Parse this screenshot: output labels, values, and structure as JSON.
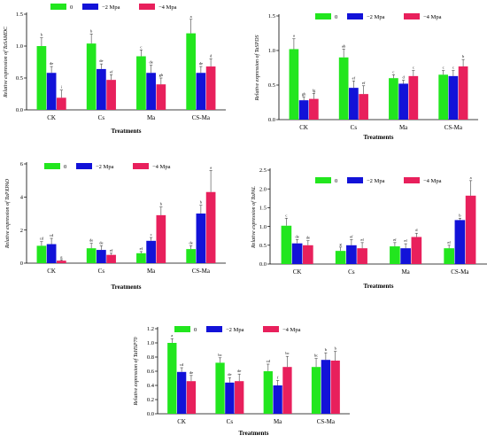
{
  "colors": {
    "s0": "#22e61e",
    "s2": "#1212d8",
    "s4": "#e8205c"
  },
  "chart_data": [
    {
      "type": "bar",
      "ylabel": "Relative expression of TaSAMDC",
      "xlabel": "Treatments",
      "categories": [
        "CK",
        "Cs",
        "Ma",
        "CS-Ma"
      ],
      "ylim": [
        0,
        1.5
      ],
      "yticks": [
        "0.0",
        "0.5",
        "1.0",
        "1.5"
      ],
      "series": [
        {
          "name": "0",
          "values": [
            1.0,
            1.04,
            0.84,
            1.2
          ],
          "err": [
            0.13,
            0.15,
            0.1,
            0.22
          ],
          "letters": [
            "b",
            "b",
            "c",
            "a"
          ]
        },
        {
          "name": "−2 Mpa",
          "values": [
            0.58,
            0.64,
            0.58,
            0.58
          ],
          "err": [
            0.1,
            0.08,
            0.12,
            0.1
          ],
          "letters": [
            "de",
            "de",
            "de",
            "de"
          ]
        },
        {
          "name": "−4 Mpa",
          "values": [
            0.19,
            0.47,
            0.4,
            0.68
          ],
          "err": [
            0.12,
            0.08,
            0.1,
            0.12
          ],
          "letters": [
            "i",
            "ef",
            "gh",
            "d"
          ]
        }
      ]
    },
    {
      "type": "bar",
      "ylabel": "Relative expression of TaSPDS",
      "xlabel": "Treatments",
      "categories": [
        "CK",
        "Cs",
        "Ma",
        "CS-Ma"
      ],
      "ylim": [
        0,
        1.5
      ],
      "yticks": [
        "0.0",
        "0.5",
        "1.0",
        "1.5"
      ],
      "series": [
        {
          "name": "0",
          "values": [
            1.02,
            0.9,
            0.6,
            0.65
          ],
          "err": [
            0.15,
            0.12,
            0.05,
            0.06
          ],
          "letters": [
            "a",
            "ab",
            "c",
            "c"
          ]
        },
        {
          "name": "−2 Mpa",
          "values": [
            0.28,
            0.46,
            0.52,
            0.63
          ],
          "err": [
            0.05,
            0.1,
            0.05,
            0.08
          ],
          "letters": [
            "gh",
            "ef",
            "d",
            "c"
          ]
        },
        {
          "name": "−4 Mpa",
          "values": [
            0.3,
            0.37,
            0.63,
            0.77
          ],
          "err": [
            0.08,
            0.12,
            0.08,
            0.1
          ],
          "letters": [
            "fg",
            "ef",
            "c",
            "b"
          ]
        }
      ]
    },
    {
      "type": "bar",
      "ylabel": "Relative expression of TaPXPAO",
      "xlabel": "Treatments",
      "categories": [
        "CK",
        "Cs",
        "Ma",
        "CS-Ma"
      ],
      "ylim": [
        0,
        6
      ],
      "yticks": [
        "0",
        "2",
        "4",
        "6"
      ],
      "series": [
        {
          "name": "0",
          "values": [
            1.05,
            0.9,
            0.6,
            0.85
          ],
          "err": [
            0.25,
            0.3,
            0.1,
            0.2
          ],
          "letters": [
            "cd",
            "de",
            "ef",
            "de"
          ]
        },
        {
          "name": "−2 Mpa",
          "values": [
            1.15,
            0.8,
            1.35,
            3.0
          ],
          "err": [
            0.35,
            0.25,
            0.2,
            0.5
          ],
          "letters": [
            "cd",
            "de",
            "c",
            "b"
          ]
        },
        {
          "name": "−4 Mpa",
          "values": [
            0.15,
            0.5,
            2.9,
            4.3
          ],
          "err": [
            0.05,
            0.1,
            0.5,
            1.3
          ],
          "letters": [
            "g",
            "ef",
            "b",
            "a"
          ]
        }
      ]
    },
    {
      "type": "bar",
      "ylabel": "Relative expression of TaPAL",
      "xlabel": "Treatments",
      "categories": [
        "CK",
        "Cs",
        "Ma",
        "CS-Ma"
      ],
      "ylim": [
        0,
        2.5
      ],
      "yticks": [
        "0.0",
        "0.5",
        "1.0",
        "1.5",
        "2.0",
        "2.5"
      ],
      "series": [
        {
          "name": "0",
          "values": [
            1.02,
            0.35,
            0.47,
            0.42
          ],
          "err": [
            0.2,
            0.1,
            0.1,
            0.08
          ],
          "letters": [
            "c",
            "g",
            "ef",
            "ef"
          ]
        },
        {
          "name": "−2 Mpa",
          "values": [
            0.55,
            0.5,
            0.42,
            1.17
          ],
          "err": [
            0.1,
            0.15,
            0.12,
            0.05
          ],
          "letters": [
            "de",
            "ef",
            "ef",
            "b"
          ]
        },
        {
          "name": "−4 Mpa",
          "values": [
            0.5,
            0.42,
            0.72,
            1.82
          ],
          "err": [
            0.12,
            0.15,
            0.1,
            0.4
          ],
          "letters": [
            "de",
            "ef",
            "d",
            "a"
          ]
        }
      ]
    },
    {
      "type": "bar",
      "ylabel": "Relative expression of TaHSP70",
      "xlabel": "Treatments",
      "categories": [
        "CK",
        "Cs",
        "Ma",
        "CS-Ma"
      ],
      "ylim": [
        0,
        1.2
      ],
      "yticks": [
        "0.0",
        "0.2",
        "0.4",
        "0.6",
        "0.8",
        "1.0",
        "1.2"
      ],
      "series": [
        {
          "name": "0",
          "values": [
            1.0,
            0.72,
            0.6,
            0.66
          ],
          "err": [
            0.06,
            0.07,
            0.1,
            0.12
          ],
          "letters": [
            "a",
            "bc",
            "cd",
            "bc"
          ]
        },
        {
          "name": "−2 Mpa",
          "values": [
            0.59,
            0.44,
            0.4,
            0.76
          ],
          "err": [
            0.06,
            0.07,
            0.07,
            0.1
          ],
          "letters": [
            "cd",
            "de",
            "f",
            "b"
          ]
        },
        {
          "name": "−4 Mpa",
          "values": [
            0.46,
            0.46,
            0.66,
            0.75
          ],
          "err": [
            0.08,
            0.1,
            0.15,
            0.13
          ],
          "letters": [
            "de",
            "de",
            "bc",
            "b"
          ]
        }
      ]
    }
  ]
}
